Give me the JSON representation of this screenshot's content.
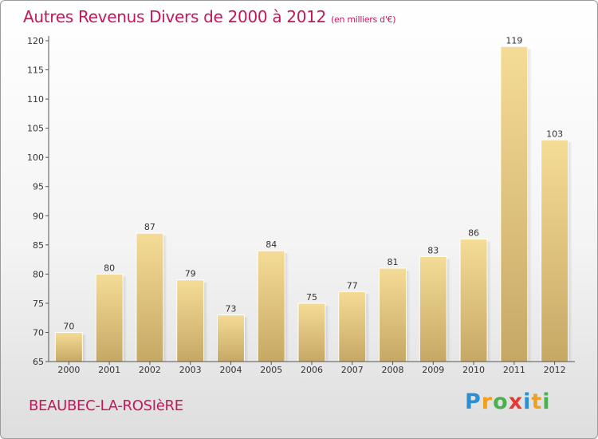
{
  "title": "Autres Revenus Divers de 2000 à 2012",
  "subtitle": "(en milliers d'€)",
  "commune": "BEAUBEC-LA-ROSIèRE",
  "logo": {
    "letters": [
      "P",
      "r",
      "o",
      "x",
      "i",
      "t",
      "i"
    ],
    "colors": [
      "#2e8fd0",
      "#f0a020",
      "#4caf50",
      "#e53935",
      "#2e8fd0",
      "#f0a020",
      "#4caf50"
    ]
  },
  "colors": {
    "title": "#c2185b",
    "bar_top": "#f5dc96",
    "bar_bottom": "#c6a865"
  },
  "chart_data": {
    "type": "bar",
    "title": "Autres Revenus Divers de 2000 à 2012",
    "xlabel": "",
    "ylabel": "",
    "categories": [
      "2000",
      "2001",
      "2002",
      "2003",
      "2004",
      "2005",
      "2006",
      "2007",
      "2008",
      "2009",
      "2010",
      "2011",
      "2012"
    ],
    "values": [
      70,
      80,
      87,
      79,
      73,
      84,
      75,
      77,
      81,
      83,
      86,
      119,
      103
    ],
    "ylim": [
      65,
      120
    ],
    "yticks": [
      65,
      70,
      75,
      80,
      85,
      90,
      95,
      100,
      105,
      110,
      115,
      120
    ],
    "grid": false,
    "legend": "none"
  }
}
